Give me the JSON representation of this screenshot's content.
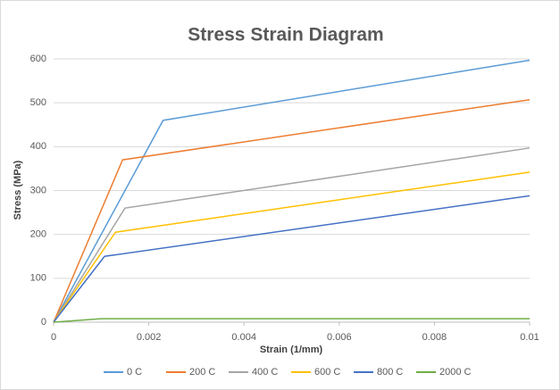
{
  "chart_data": {
    "type": "line",
    "title": "Stress Strain Diagram",
    "x_label": "Strain (1/mm)",
    "y_label": "Stress (MPa)",
    "xlim": [
      0,
      0.01
    ],
    "xticks": [
      0,
      0.002,
      0.004,
      0.006,
      0.008,
      0.01
    ],
    "ylim": [
      0,
      600
    ],
    "yticks": [
      0,
      100,
      200,
      300,
      400,
      500,
      600
    ],
    "grid": true,
    "legend": "bottom",
    "series": [
      {
        "name": "0 C",
        "color": "#5b9bd5",
        "x": [
          0,
          0.0023,
          0.01
        ],
        "values": [
          0,
          460,
          597
        ]
      },
      {
        "name": "200 C",
        "color": "#ed7d31",
        "x": [
          0,
          0.00145,
          0.01
        ],
        "values": [
          0,
          370,
          507
        ]
      },
      {
        "name": "400 C",
        "color": "#a5a5a5",
        "x": [
          0,
          0.0015,
          0.01
        ],
        "values": [
          0,
          260,
          397
        ]
      },
      {
        "name": "600 C",
        "color": "#ffc000",
        "x": [
          0,
          0.0013,
          0.01
        ],
        "values": [
          0,
          205,
          342
        ]
      },
      {
        "name": "800 C",
        "color": "#4472c4",
        "x": [
          0,
          0.00107,
          0.01
        ],
        "values": [
          0,
          150,
          288
        ]
      },
      {
        "name": "2000 C",
        "color": "#70ad47",
        "x": [
          0,
          0.001,
          0.01
        ],
        "values": [
          0,
          8,
          8
        ]
      }
    ]
  }
}
